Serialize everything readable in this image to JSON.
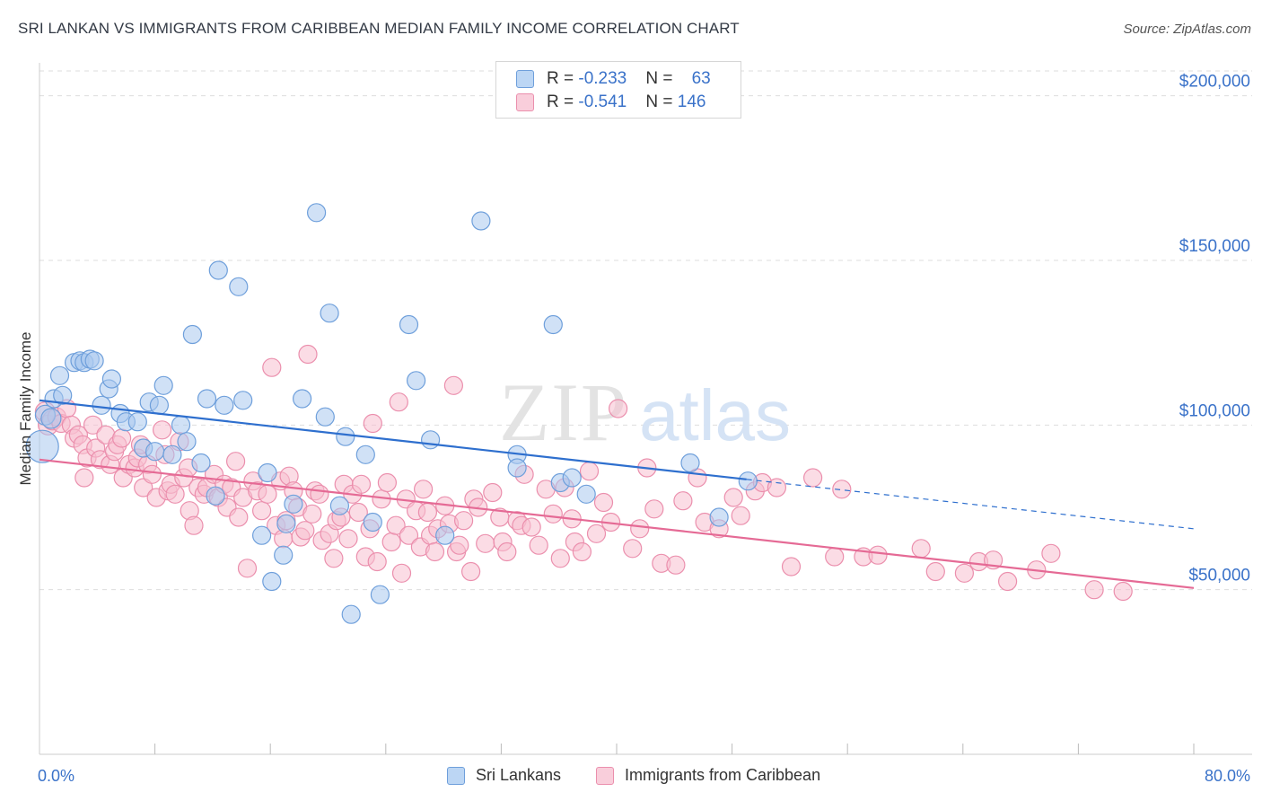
{
  "header": {
    "title": "SRI LANKAN VS IMMIGRANTS FROM CARIBBEAN MEDIAN FAMILY INCOME CORRELATION CHART",
    "source": "Source: ZipAtlas.com"
  },
  "watermark": {
    "part1": "ZIP",
    "part2": "atlas"
  },
  "legend": {
    "rows": [
      {
        "r_label": "R = ",
        "r_value": "-0.233",
        "n_label": "N = ",
        "n_value": "63"
      },
      {
        "r_label": "R = ",
        "r_value": "-0.541",
        "n_label": "N = ",
        "n_value": "146"
      }
    ]
  },
  "colors": {
    "blue_fill": "#a9c8ef",
    "blue_stroke": "#6e9fdb",
    "blue_line": "#2e6fce",
    "pink_fill": "#f7bfd0",
    "pink_stroke": "#eb8fad",
    "pink_line": "#e56a95",
    "tick_label": "#3a72c9",
    "grid": "#dddddd"
  },
  "chart_data": {
    "type": "scatter",
    "title": "SRI LANKAN VS IMMIGRANTS FROM CARIBBEAN MEDIAN FAMILY INCOME CORRELATION CHART",
    "xlabel": "",
    "ylabel": "Median Family Income",
    "xlim": [
      0,
      80
    ],
    "ylim": [
      0,
      210000
    ],
    "x_tick_labels": [
      "0.0%",
      "80.0%"
    ],
    "y_ticks": [
      50000,
      100000,
      150000,
      200000
    ],
    "y_tick_labels": [
      "$50,000",
      "$100,000",
      "$150,000",
      "$200,000"
    ],
    "grid": true,
    "legend_position": "top-center",
    "series": [
      {
        "name": "Sri Lankans",
        "color": "#a9c8ef",
        "trend": {
          "x": [
            0,
            49
          ],
          "y": [
            107500,
            83500
          ],
          "dashed_to": [
            80,
            68500
          ]
        },
        "points": [
          [
            0.2,
            93500,
            18
          ],
          [
            0.4,
            103000,
            11
          ],
          [
            0.8,
            102000,
            11
          ],
          [
            1.0,
            108000,
            10
          ],
          [
            1.4,
            115000,
            10
          ],
          [
            1.6,
            109000,
            10
          ],
          [
            2.4,
            119000,
            10
          ],
          [
            2.8,
            119500,
            10
          ],
          [
            3.1,
            119000,
            10
          ],
          [
            3.5,
            120000,
            10
          ],
          [
            3.8,
            119500,
            10
          ],
          [
            4.3,
            106000,
            10
          ],
          [
            4.8,
            111000,
            10
          ],
          [
            5.0,
            114000,
            10
          ],
          [
            5.6,
            103500,
            10
          ],
          [
            6.0,
            101000,
            10
          ],
          [
            6.8,
            101000,
            10
          ],
          [
            7.2,
            93000,
            10
          ],
          [
            7.6,
            107000,
            10
          ],
          [
            8.0,
            92000,
            10
          ],
          [
            8.3,
            106000,
            10
          ],
          [
            8.6,
            112000,
            10
          ],
          [
            9.2,
            91000,
            10
          ],
          [
            9.8,
            100000,
            10
          ],
          [
            10.2,
            95000,
            10
          ],
          [
            10.6,
            127500,
            10
          ],
          [
            11.2,
            88500,
            10
          ],
          [
            11.6,
            108000,
            10
          ],
          [
            12.2,
            78500,
            10
          ],
          [
            12.8,
            106000,
            10
          ],
          [
            12.4,
            147000,
            10
          ],
          [
            13.8,
            142000,
            10
          ],
          [
            14.1,
            107500,
            10
          ],
          [
            15.4,
            66500,
            10
          ],
          [
            15.8,
            85500,
            10
          ],
          [
            16.1,
            52500,
            10
          ],
          [
            16.9,
            60500,
            10
          ],
          [
            17.1,
            70000,
            10
          ],
          [
            17.6,
            76000,
            10
          ],
          [
            18.2,
            108000,
            10
          ],
          [
            19.2,
            164500,
            10
          ],
          [
            19.8,
            102500,
            10
          ],
          [
            20.1,
            134000,
            10
          ],
          [
            20.8,
            75500,
            10
          ],
          [
            21.2,
            96500,
            10
          ],
          [
            21.6,
            42500,
            10
          ],
          [
            22.6,
            91000,
            10
          ],
          [
            23.1,
            70500,
            10
          ],
          [
            23.6,
            48500,
            10
          ],
          [
            25.6,
            130500,
            10
          ],
          [
            26.1,
            113500,
            10
          ],
          [
            27.1,
            95500,
            10
          ],
          [
            28.1,
            66500,
            10
          ],
          [
            30.6,
            162000,
            10
          ],
          [
            33.1,
            91000,
            10
          ],
          [
            33.1,
            87000,
            10
          ],
          [
            35.6,
            130500,
            10
          ],
          [
            36.1,
            82500,
            10
          ],
          [
            36.9,
            84000,
            10
          ],
          [
            37.9,
            79000,
            10
          ],
          [
            45.1,
            88500,
            10
          ],
          [
            47.1,
            72000,
            10
          ],
          [
            49.1,
            83000,
            10
          ]
        ]
      },
      {
        "name": "Immigrants from Caribbean",
        "color": "#f7bfd0",
        "trend": {
          "x": [
            0,
            80
          ],
          "y": [
            89500,
            50500
          ]
        },
        "points": [
          [
            0.4,
            104000,
            11
          ],
          [
            0.6,
            100000,
            11
          ],
          [
            0.9,
            101500,
            11
          ],
          [
            1.2,
            102500,
            10
          ],
          [
            1.5,
            100500,
            10
          ],
          [
            1.9,
            105000,
            10
          ],
          [
            2.2,
            100000,
            10
          ],
          [
            2.4,
            96000,
            10
          ],
          [
            2.7,
            97000,
            10
          ],
          [
            3.0,
            94000,
            10
          ],
          [
            3.1,
            84000,
            10
          ],
          [
            3.3,
            90000,
            10
          ],
          [
            3.7,
            100000,
            10
          ],
          [
            3.9,
            93000,
            10
          ],
          [
            4.2,
            89500,
            10
          ],
          [
            4.6,
            97000,
            10
          ],
          [
            4.9,
            88000,
            10
          ],
          [
            5.2,
            92000,
            10
          ],
          [
            5.4,
            94000,
            10
          ],
          [
            5.7,
            96000,
            10
          ],
          [
            5.8,
            84000,
            10
          ],
          [
            6.2,
            88000,
            10
          ],
          [
            6.6,
            87000,
            10
          ],
          [
            6.8,
            90000,
            10
          ],
          [
            7.0,
            94000,
            10
          ],
          [
            7.2,
            81000,
            10
          ],
          [
            7.5,
            88000,
            10
          ],
          [
            7.8,
            85000,
            10
          ],
          [
            8.1,
            78000,
            10
          ],
          [
            8.5,
            98500,
            10
          ],
          [
            8.7,
            91000,
            10
          ],
          [
            8.9,
            80000,
            10
          ],
          [
            9.1,
            82000,
            10
          ],
          [
            9.4,
            79000,
            10
          ],
          [
            9.7,
            95000,
            10
          ],
          [
            10.0,
            84000,
            10
          ],
          [
            10.3,
            87000,
            10
          ],
          [
            10.4,
            74000,
            10
          ],
          [
            10.7,
            69500,
            10
          ],
          [
            11.0,
            81000,
            10
          ],
          [
            11.4,
            79000,
            10
          ],
          [
            11.6,
            81000,
            10
          ],
          [
            12.1,
            85000,
            10
          ],
          [
            12.4,
            78000,
            10
          ],
          [
            12.8,
            82000,
            10
          ],
          [
            13.0,
            75000,
            10
          ],
          [
            13.3,
            81000,
            10
          ],
          [
            13.6,
            89000,
            10
          ],
          [
            13.8,
            72000,
            10
          ],
          [
            14.1,
            78000,
            10
          ],
          [
            14.4,
            56500,
            10
          ],
          [
            14.8,
            83000,
            10
          ],
          [
            15.1,
            80000,
            10
          ],
          [
            15.4,
            74000,
            10
          ],
          [
            15.8,
            79000,
            10
          ],
          [
            16.1,
            117500,
            10
          ],
          [
            16.4,
            69500,
            10
          ],
          [
            16.7,
            83000,
            10
          ],
          [
            16.9,
            65500,
            10
          ],
          [
            17.1,
            71000,
            10
          ],
          [
            17.3,
            84500,
            10
          ],
          [
            17.6,
            80000,
            10
          ],
          [
            17.9,
            75000,
            10
          ],
          [
            18.1,
            66000,
            10
          ],
          [
            18.4,
            68000,
            10
          ],
          [
            18.6,
            121500,
            10
          ],
          [
            18.9,
            73000,
            10
          ],
          [
            19.1,
            80000,
            10
          ],
          [
            19.4,
            79000,
            10
          ],
          [
            19.6,
            65000,
            10
          ],
          [
            20.1,
            67000,
            10
          ],
          [
            20.4,
            59500,
            10
          ],
          [
            20.6,
            71000,
            10
          ],
          [
            20.9,
            72000,
            10
          ],
          [
            21.1,
            82000,
            10
          ],
          [
            21.4,
            65500,
            10
          ],
          [
            21.7,
            79000,
            10
          ],
          [
            22.1,
            73500,
            10
          ],
          [
            22.3,
            82000,
            10
          ],
          [
            22.6,
            60000,
            10
          ],
          [
            22.9,
            68500,
            10
          ],
          [
            23.1,
            100500,
            10
          ],
          [
            23.4,
            58500,
            10
          ],
          [
            23.7,
            77500,
            10
          ],
          [
            24.1,
            82500,
            10
          ],
          [
            24.4,
            64500,
            10
          ],
          [
            24.7,
            69500,
            10
          ],
          [
            24.9,
            107000,
            10
          ],
          [
            25.1,
            55000,
            10
          ],
          [
            25.4,
            77500,
            10
          ],
          [
            25.6,
            66500,
            10
          ],
          [
            26.1,
            74000,
            10
          ],
          [
            26.4,
            63000,
            10
          ],
          [
            26.6,
            80500,
            10
          ],
          [
            26.9,
            73500,
            10
          ],
          [
            27.1,
            66500,
            10
          ],
          [
            27.4,
            61500,
            10
          ],
          [
            27.6,
            68500,
            10
          ],
          [
            28.1,
            75500,
            10
          ],
          [
            28.4,
            70000,
            10
          ],
          [
            28.7,
            112000,
            10
          ],
          [
            28.9,
            61500,
            10
          ],
          [
            29.1,
            63500,
            10
          ],
          [
            29.4,
            71000,
            10
          ],
          [
            29.9,
            55500,
            10
          ],
          [
            30.1,
            77500,
            10
          ],
          [
            30.4,
            75000,
            10
          ],
          [
            30.9,
            64000,
            10
          ],
          [
            31.4,
            79500,
            10
          ],
          [
            31.9,
            72000,
            10
          ],
          [
            32.1,
            64500,
            10
          ],
          [
            32.4,
            61500,
            10
          ],
          [
            33.1,
            71000,
            10
          ],
          [
            33.4,
            69500,
            10
          ],
          [
            33.6,
            85000,
            10
          ],
          [
            34.1,
            69000,
            10
          ],
          [
            34.6,
            63500,
            10
          ],
          [
            35.1,
            80500,
            10
          ],
          [
            35.6,
            73000,
            10
          ],
          [
            36.1,
            59500,
            10
          ],
          [
            36.4,
            81000,
            10
          ],
          [
            36.9,
            71500,
            10
          ],
          [
            37.1,
            64500,
            10
          ],
          [
            37.6,
            61500,
            10
          ],
          [
            38.1,
            86000,
            10
          ],
          [
            38.6,
            67000,
            10
          ],
          [
            39.1,
            76500,
            10
          ],
          [
            39.6,
            70500,
            10
          ],
          [
            40.1,
            105000,
            10
          ],
          [
            41.1,
            62500,
            10
          ],
          [
            41.6,
            68500,
            10
          ],
          [
            42.1,
            87000,
            10
          ],
          [
            42.6,
            74500,
            10
          ],
          [
            43.1,
            58000,
            10
          ],
          [
            44.1,
            57500,
            10
          ],
          [
            44.6,
            77000,
            10
          ],
          [
            45.6,
            84000,
            10
          ],
          [
            46.1,
            70500,
            10
          ],
          [
            47.1,
            68500,
            10
          ],
          [
            48.1,
            78000,
            10
          ],
          [
            48.6,
            72500,
            10
          ],
          [
            49.6,
            80000,
            10
          ],
          [
            50.1,
            82500,
            10
          ],
          [
            51.1,
            81000,
            10
          ],
          [
            52.1,
            57000,
            10
          ],
          [
            53.6,
            84000,
            10
          ],
          [
            55.1,
            60000,
            10
          ],
          [
            55.6,
            80500,
            10
          ],
          [
            57.1,
            60000,
            10
          ],
          [
            58.1,
            60500,
            10
          ],
          [
            61.1,
            62500,
            10
          ],
          [
            62.1,
            55500,
            10
          ],
          [
            64.1,
            55000,
            10
          ],
          [
            65.1,
            58500,
            10
          ],
          [
            66.1,
            59000,
            10
          ],
          [
            67.1,
            52500,
            10
          ],
          [
            69.1,
            56000,
            10
          ],
          [
            70.1,
            61000,
            10
          ],
          [
            73.1,
            50000,
            10
          ],
          [
            75.1,
            49500,
            10
          ]
        ]
      }
    ]
  },
  "bottom_legend": {
    "items": [
      {
        "label": "Sri Lankans"
      },
      {
        "label": "Immigrants from Caribbean"
      }
    ]
  }
}
